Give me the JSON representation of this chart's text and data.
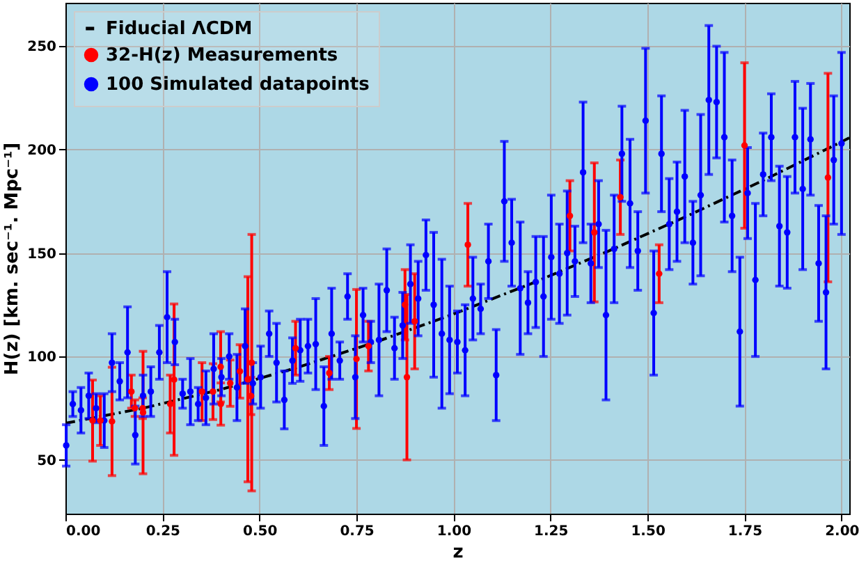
{
  "chart_data": {
    "type": "scatter",
    "xlabel": "z",
    "ylabel": "H(z) [km. sec⁻¹. Mpc⁻¹]",
    "xlim": [
      0,
      2.02
    ],
    "ylim": [
      24,
      271
    ],
    "xticks": [
      {
        "value": 0,
        "label": "0.00"
      },
      {
        "value": 0.25,
        "label": "0.25"
      },
      {
        "value": 0.5,
        "label": "0.50"
      },
      {
        "value": 0.75,
        "label": "0.75"
      },
      {
        "value": 1,
        "label": "1.00"
      },
      {
        "value": 1.25,
        "label": "1.25"
      },
      {
        "value": 1.5,
        "label": "1.50"
      },
      {
        "value": 1.75,
        "label": "1.75"
      },
      {
        "value": 2,
        "label": "2.00"
      }
    ],
    "yticks": [
      50,
      100,
      150,
      200,
      250
    ],
    "grid": true,
    "legend": "top left",
    "marker": "circle",
    "series": [
      {
        "name": "Fiducial ΛCDM",
        "type": "line",
        "color": "#000000",
        "line_style": "dashdot",
        "marker": "none",
        "x": [
          0,
          0.2,
          0.4,
          0.6,
          0.8,
          1.0,
          1.2,
          1.4,
          1.6,
          1.8,
          2.0,
          2.02
        ],
        "values": [
          67.7,
          75.0,
          84.0,
          94.8,
          107.0,
          120.5,
          135.2,
          151.0,
          167.7,
          185.3,
          203.8,
          205.7
        ]
      },
      {
        "name": "32-H(z) Measurements",
        "color": "#ff0000",
        "x": [
          0.07,
          0.09,
          0.12,
          0.17,
          0.179,
          0.199,
          0.2,
          0.27,
          0.28,
          0.352,
          0.3802,
          0.4,
          0.4004,
          0.4247,
          0.4497,
          0.47,
          0.4783,
          0.48,
          0.593,
          0.68,
          0.75,
          0.781,
          0.875,
          0.88,
          0.9,
          1.037,
          1.3,
          1.363,
          1.43,
          1.53,
          1.75,
          1.965
        ],
        "values": [
          69,
          69,
          68.6,
          83,
          75,
          75,
          72.9,
          77,
          88.8,
          83,
          83,
          95,
          77,
          87.1,
          92.8,
          89,
          80.9,
          97,
          104,
          92,
          98.8,
          105,
          125,
          90,
          117,
          154,
          168,
          160,
          177,
          140,
          202,
          186.5
        ],
        "errors": [
          19.6,
          12,
          26.2,
          8,
          4,
          5,
          29.6,
          14,
          36.6,
          14,
          13.5,
          17,
          10.2,
          11.2,
          12.9,
          49.6,
          9,
          62,
          13,
          8,
          33.6,
          12,
          17,
          40,
          23,
          20,
          17,
          33.6,
          18,
          14,
          40,
          50.4
        ]
      },
      {
        "name": "100 Simulated datapoints",
        "color": "#0000ff",
        "x": [
          0.002,
          0.019,
          0.04,
          0.06,
          0.079,
          0.1,
          0.12,
          0.14,
          0.16,
          0.18,
          0.2,
          0.22,
          0.242,
          0.262,
          0.282,
          0.302,
          0.322,
          0.342,
          0.362,
          0.382,
          0.402,
          0.422,
          0.442,
          0.463,
          0.483,
          0.503,
          0.525,
          0.544,
          0.564,
          0.585,
          0.605,
          0.625,
          0.645,
          0.666,
          0.686,
          0.707,
          0.727,
          0.747,
          0.767,
          0.787,
          0.808,
          0.828,
          0.848,
          0.869,
          0.889,
          0.909,
          0.929,
          0.949,
          0.97,
          0.99,
          1.01,
          1.03,
          1.05,
          1.07,
          1.09,
          1.11,
          1.131,
          1.15,
          1.172,
          1.192,
          1.212,
          1.232,
          1.252,
          1.273,
          1.293,
          1.313,
          1.334,
          1.354,
          1.374,
          1.393,
          1.414,
          1.434,
          1.455,
          1.475,
          1.495,
          1.516,
          1.536,
          1.556,
          1.576,
          1.596,
          1.617,
          1.637,
          1.658,
          1.678,
          1.698,
          1.718,
          1.738,
          1.758,
          1.778,
          1.798,
          1.819,
          1.84,
          1.86,
          1.88,
          1.9,
          1.92,
          1.941,
          1.96,
          1.98,
          2.0
        ],
        "values": [
          57,
          77,
          74,
          81,
          75,
          69,
          97,
          88,
          102,
          62,
          81,
          83,
          102,
          119,
          107,
          82,
          83,
          77,
          80,
          94,
          90,
          100,
          85,
          105,
          87,
          90,
          111,
          97,
          79,
          98,
          103,
          105,
          106,
          76,
          111,
          98,
          129,
          90,
          120,
          107,
          108,
          132,
          104,
          115,
          135,
          128,
          149,
          125,
          111,
          108,
          107,
          103,
          128,
          123,
          146,
          91,
          175,
          155,
          133,
          126,
          136,
          129,
          148,
          140,
          150,
          146,
          189,
          145,
          164,
          120,
          152,
          198,
          174,
          151,
          214,
          121,
          198,
          164,
          170,
          187,
          155,
          178,
          224,
          223,
          206,
          168,
          112,
          179,
          137,
          188,
          206,
          163,
          160,
          206,
          181,
          205,
          145,
          131,
          195,
          203
        ],
        "errors": [
          10,
          6,
          11,
          11,
          7,
          13,
          14,
          9,
          22,
          14,
          10,
          12,
          13,
          22,
          11,
          7,
          16,
          8,
          13,
          17,
          9,
          11,
          16,
          18,
          10,
          15,
          11,
          19,
          14,
          11,
          15,
          13,
          22,
          19,
          22,
          9,
          11,
          20,
          13,
          10,
          27,
          20,
          15,
          16,
          19,
          18,
          17,
          35,
          36,
          26,
          15,
          22,
          20,
          12,
          18,
          22,
          29,
          21,
          32,
          15,
          22,
          29,
          30,
          24,
          30,
          17,
          34,
          19,
          21,
          41,
          26,
          23,
          31,
          19,
          35,
          30,
          28,
          22,
          24,
          32,
          20,
          39,
          36,
          27,
          41,
          27,
          36,
          22,
          37,
          20,
          21,
          29,
          27,
          27,
          39,
          27,
          28,
          37,
          31,
          44
        ]
      }
    ]
  }
}
